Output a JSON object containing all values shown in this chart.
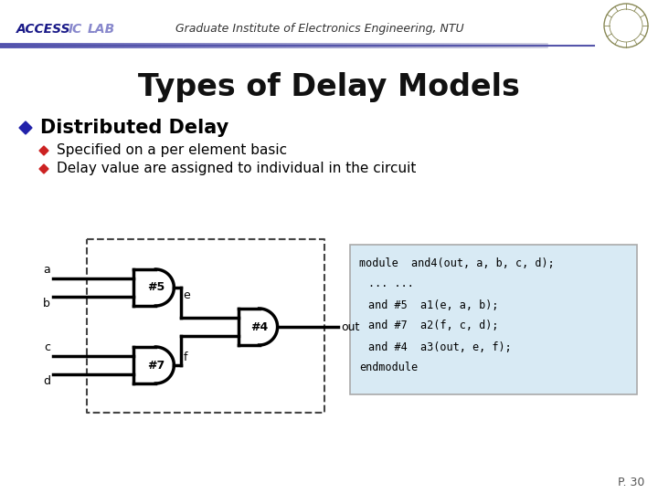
{
  "title": "Types of Delay Models",
  "header_access": "ACCESS",
  "header_ic": " IC ",
  "header_lab": "LAB",
  "header_center": "Graduate Institute of Electronics Engineering, NTU",
  "bullet_main": "Distributed Delay",
  "bullet_sub1": "Specified on a per element basic",
  "bullet_sub2": "Delay value are assigned to individual in the circuit",
  "code_line1": "module  and4(out, a, b, c, d);",
  "code_line2": "... ...",
  "code_line3": "and #5  a1(e, a, b);",
  "code_line4": "and #7  a2(f, c, d);",
  "code_line5": "and #4  a3(out, e, f);",
  "code_line6": "endmodule",
  "page_num": "P. 30",
  "bg_color": "#ffffff",
  "bar_color_l": "#4444aa",
  "bar_color_r": "#ccccee",
  "title_color": "#111111",
  "access_color": "#1a1a88",
  "ic_color": "#8888cc",
  "lab_color": "#8888cc",
  "header_text_color": "#333333",
  "bullet_blue": "#2222aa",
  "bullet_red": "#cc2222",
  "gate_lw": 2.5,
  "code_bg": "#d8eaf4",
  "code_border": "#aaaaaa"
}
